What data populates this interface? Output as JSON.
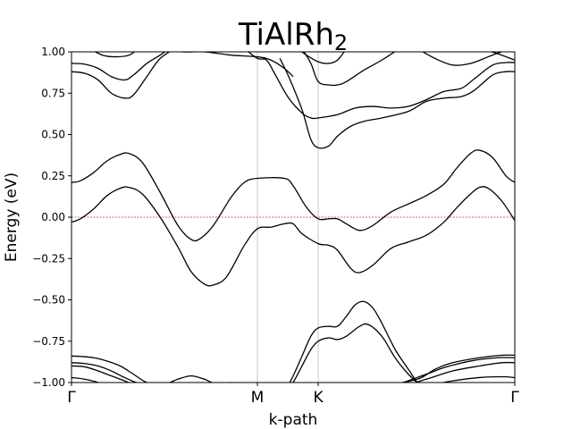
{
  "chart_data": {
    "type": "line",
    "title": "TiAlRh",
    "title_subscript": "2",
    "xlabel": "k-path",
    "ylabel": "Energy (eV)",
    "ylim": [
      -1.0,
      1.0
    ],
    "xlim": [
      0,
      1
    ],
    "y_ticks": [
      -1.0,
      -0.75,
      -0.5,
      -0.25,
      0.0,
      0.25,
      0.5,
      0.75,
      1.0
    ],
    "y_tick_labels": [
      "−1.00",
      "−0.75",
      "−0.50",
      "−0.25",
      "0.00",
      "0.25",
      "0.50",
      "0.75",
      "1.00"
    ],
    "k_points": [
      {
        "label": "Γ",
        "x": 0.0
      },
      {
        "label": "M",
        "x": 0.4194
      },
      {
        "label": "K",
        "x": 0.5565
      },
      {
        "label": "Γ",
        "x": 1.0
      }
    ],
    "fermi_level": 0.0,
    "fermi_color": "#d62728",
    "band_color": "#000000",
    "vline_color": "#c8c8c8",
    "grid": false,
    "series": [
      {
        "points": [
          [
            0,
            -0.97
          ],
          [
            0.03,
            -0.98
          ],
          [
            0.06,
            -1.0
          ],
          [
            0.09,
            -1.04
          ],
          [
            0.12,
            -1.06
          ],
          [
            0.18,
            -1.08
          ],
          [
            0.24,
            -1.06
          ],
          [
            0.3,
            -1.03
          ],
          [
            0.36,
            -1.05
          ],
          [
            0.4194,
            -1.1
          ],
          [
            0.48,
            -1.12
          ],
          [
            0.5565,
            -1.15
          ],
          [
            0.62,
            -1.12
          ],
          [
            0.68,
            -1.08
          ],
          [
            0.74,
            -1.05
          ],
          [
            0.8,
            -1.02
          ],
          [
            0.86,
            -0.99
          ],
          [
            0.92,
            -0.97
          ],
          [
            0.97,
            -0.965
          ],
          [
            1.0,
            -0.97
          ]
        ]
      },
      {
        "points": [
          [
            0,
            -0.9
          ],
          [
            0.03,
            -0.905
          ],
          [
            0.06,
            -0.93
          ],
          [
            0.09,
            -0.96
          ],
          [
            0.12,
            -0.99
          ],
          [
            0.15,
            -1.02
          ],
          [
            0.2,
            -1.02
          ],
          [
            0.24,
            -0.98
          ],
          [
            0.27,
            -0.96
          ],
          [
            0.3,
            -0.98
          ],
          [
            0.33,
            -1.01
          ],
          [
            0.4194,
            -1.05
          ],
          [
            0.5,
            -1.05
          ],
          [
            0.5565,
            -1.1
          ],
          [
            0.62,
            -1.08
          ],
          [
            0.7,
            -1.06
          ],
          [
            0.8,
            -0.98
          ],
          [
            0.86,
            -0.93
          ],
          [
            0.92,
            -0.9
          ],
          [
            0.97,
            -0.88
          ],
          [
            1.0,
            -0.88
          ]
        ]
      },
      {
        "points": [
          [
            0,
            -0.88
          ],
          [
            0.03,
            -0.885
          ],
          [
            0.06,
            -0.9
          ],
          [
            0.09,
            -0.93
          ],
          [
            0.12,
            -0.97
          ],
          [
            0.16,
            -1.01
          ],
          [
            0.24,
            -1.03
          ],
          [
            0.3,
            -1.02
          ],
          [
            0.36,
            -1.0
          ],
          [
            0.4194,
            -1.02
          ],
          [
            0.5,
            -1.03
          ],
          [
            0.5565,
            -1.05
          ],
          [
            0.62,
            -1.06
          ],
          [
            0.7,
            -1.04
          ],
          [
            0.8,
            -0.95
          ],
          [
            0.84,
            -0.91
          ],
          [
            0.9,
            -0.87
          ],
          [
            0.96,
            -0.85
          ],
          [
            1.0,
            -0.85
          ]
        ]
      },
      {
        "points": [
          [
            0,
            -0.84
          ],
          [
            0.02,
            -0.842
          ],
          [
            0.05,
            -0.85
          ],
          [
            0.08,
            -0.87
          ],
          [
            0.11,
            -0.9
          ],
          [
            0.14,
            -0.95
          ],
          [
            0.17,
            -1.0
          ],
          [
            0.22,
            -1.04
          ],
          [
            0.3,
            -1.05
          ],
          [
            0.4194,
            -1.05
          ],
          [
            0.48,
            -1.05
          ],
          [
            0.5565,
            -1.05
          ],
          [
            0.62,
            -1.04
          ],
          [
            0.7,
            -1.02
          ],
          [
            0.78,
            -0.98
          ],
          [
            0.82,
            -0.92
          ],
          [
            0.86,
            -0.88
          ],
          [
            0.92,
            -0.85
          ],
          [
            0.97,
            -0.835
          ],
          [
            1.0,
            -0.835
          ]
        ]
      },
      {
        "points": [
          [
            0.48,
            -1.08
          ],
          [
            0.5,
            -1.0
          ],
          [
            0.52,
            -0.9
          ],
          [
            0.54,
            -0.8
          ],
          [
            0.5565,
            -0.75
          ],
          [
            0.58,
            -0.73
          ],
          [
            0.6,
            -0.74
          ],
          [
            0.62,
            -0.72
          ],
          [
            0.65,
            -0.66
          ],
          [
            0.67,
            -0.65
          ],
          [
            0.7,
            -0.72
          ],
          [
            0.73,
            -0.85
          ],
          [
            0.76,
            -0.95
          ],
          [
            0.8,
            -1.05
          ]
        ]
      },
      {
        "points": [
          [
            0.48,
            -1.06
          ],
          [
            0.5,
            -0.96
          ],
          [
            0.52,
            -0.84
          ],
          [
            0.54,
            -0.72
          ],
          [
            0.5565,
            -0.67
          ],
          [
            0.58,
            -0.66
          ],
          [
            0.6,
            -0.66
          ],
          [
            0.62,
            -0.6
          ],
          [
            0.64,
            -0.53
          ],
          [
            0.66,
            -0.51
          ],
          [
            0.68,
            -0.55
          ],
          [
            0.7,
            -0.64
          ],
          [
            0.73,
            -0.8
          ],
          [
            0.76,
            -0.92
          ],
          [
            0.78,
            -1.0
          ],
          [
            0.8,
            -1.06
          ]
        ]
      },
      {
        "points": [
          [
            0,
            -0.03
          ],
          [
            0.02,
            -0.01
          ],
          [
            0.05,
            0.05
          ],
          [
            0.08,
            0.13
          ],
          [
            0.11,
            0.175
          ],
          [
            0.13,
            0.18
          ],
          [
            0.16,
            0.14
          ],
          [
            0.2,
            0.0
          ],
          [
            0.24,
            -0.18
          ],
          [
            0.27,
            -0.33
          ],
          [
            0.3,
            -0.405
          ],
          [
            0.32,
            -0.41
          ],
          [
            0.35,
            -0.36
          ],
          [
            0.39,
            -0.17
          ],
          [
            0.4194,
            -0.07
          ],
          [
            0.45,
            -0.06
          ],
          [
            0.48,
            -0.04
          ],
          [
            0.5,
            -0.04
          ],
          [
            0.52,
            -0.1
          ],
          [
            0.5565,
            -0.16
          ],
          [
            0.58,
            -0.17
          ],
          [
            0.6,
            -0.2
          ],
          [
            0.63,
            -0.31
          ],
          [
            0.65,
            -0.335
          ],
          [
            0.68,
            -0.29
          ],
          [
            0.72,
            -0.19
          ],
          [
            0.76,
            -0.15
          ],
          [
            0.8,
            -0.11
          ],
          [
            0.84,
            -0.03
          ],
          [
            0.87,
            0.06
          ],
          [
            0.9,
            0.14
          ],
          [
            0.92,
            0.18
          ],
          [
            0.94,
            0.175
          ],
          [
            0.97,
            0.1
          ],
          [
            1.0,
            -0.02
          ]
        ]
      },
      {
        "points": [
          [
            0,
            0.21
          ],
          [
            0.02,
            0.22
          ],
          [
            0.05,
            0.27
          ],
          [
            0.08,
            0.34
          ],
          [
            0.11,
            0.38
          ],
          [
            0.13,
            0.385
          ],
          [
            0.16,
            0.33
          ],
          [
            0.2,
            0.15
          ],
          [
            0.24,
            -0.05
          ],
          [
            0.27,
            -0.135
          ],
          [
            0.29,
            -0.13
          ],
          [
            0.32,
            -0.05
          ],
          [
            0.36,
            0.12
          ],
          [
            0.39,
            0.21
          ],
          [
            0.4194,
            0.235
          ],
          [
            0.48,
            0.235
          ],
          [
            0.5,
            0.19
          ],
          [
            0.53,
            0.06
          ],
          [
            0.5565,
            -0.01
          ],
          [
            0.58,
            -0.01
          ],
          [
            0.6,
            -0.01
          ],
          [
            0.62,
            -0.04
          ],
          [
            0.65,
            -0.08
          ],
          [
            0.68,
            -0.05
          ],
          [
            0.72,
            0.03
          ],
          [
            0.76,
            0.08
          ],
          [
            0.8,
            0.13
          ],
          [
            0.84,
            0.2
          ],
          [
            0.87,
            0.3
          ],
          [
            0.9,
            0.385
          ],
          [
            0.92,
            0.405
          ],
          [
            0.95,
            0.36
          ],
          [
            0.98,
            0.25
          ],
          [
            1.0,
            0.21
          ]
        ]
      },
      {
        "points": [
          [
            0.47,
            0.96
          ],
          [
            0.49,
            0.85
          ],
          [
            0.52,
            0.65
          ],
          [
            0.54,
            0.47
          ],
          [
            0.5565,
            0.42
          ],
          [
            0.58,
            0.43
          ],
          [
            0.6,
            0.49
          ],
          [
            0.63,
            0.55
          ],
          [
            0.66,
            0.58
          ],
          [
            0.7,
            0.6
          ],
          [
            0.76,
            0.64
          ],
          [
            0.8,
            0.7
          ],
          [
            0.84,
            0.72
          ],
          [
            0.88,
            0.73
          ],
          [
            0.91,
            0.77
          ],
          [
            0.95,
            0.86
          ],
          [
            0.98,
            0.88
          ],
          [
            1.0,
            0.88
          ]
        ]
      },
      {
        "points": [
          [
            0.52,
            1.02
          ],
          [
            0.54,
            0.93
          ],
          [
            0.5565,
            0.82
          ],
          [
            0.58,
            0.8
          ],
          [
            0.6,
            0.8
          ],
          [
            0.62,
            0.82
          ],
          [
            0.66,
            0.89
          ],
          [
            0.7,
            0.95
          ],
          [
            0.74,
            1.02
          ]
        ]
      },
      {
        "points": [
          [
            0.51,
            1.02
          ],
          [
            0.53,
            0.98
          ],
          [
            0.5565,
            0.94
          ],
          [
            0.58,
            0.93
          ],
          [
            0.6,
            0.95
          ],
          [
            0.62,
            1.02
          ]
        ]
      },
      {
        "points": [
          [
            0.39,
            1.02
          ],
          [
            0.4194,
            0.96
          ],
          [
            0.44,
            0.95
          ],
          [
            0.46,
            0.86
          ],
          [
            0.49,
            0.72
          ],
          [
            0.52,
            0.63
          ],
          [
            0.54,
            0.6
          ],
          [
            0.5565,
            0.6
          ],
          [
            0.6,
            0.62
          ],
          [
            0.64,
            0.66
          ],
          [
            0.68,
            0.67
          ],
          [
            0.72,
            0.66
          ],
          [
            0.76,
            0.67
          ],
          [
            0.8,
            0.71
          ],
          [
            0.84,
            0.76
          ],
          [
            0.88,
            0.78
          ],
          [
            0.91,
            0.84
          ],
          [
            0.95,
            0.92
          ],
          [
            0.98,
            0.935
          ],
          [
            1.0,
            0.935
          ]
        ]
      },
      {
        "points": [
          [
            0,
            0.93
          ],
          [
            0.03,
            0.925
          ],
          [
            0.06,
            0.9
          ],
          [
            0.09,
            0.85
          ],
          [
            0.12,
            0.83
          ],
          [
            0.14,
            0.86
          ],
          [
            0.17,
            0.93
          ],
          [
            0.2,
            0.98
          ],
          [
            0.22,
            1.02
          ]
        ]
      },
      {
        "points": [
          [
            0,
            0.88
          ],
          [
            0.03,
            0.87
          ],
          [
            0.06,
            0.83
          ],
          [
            0.09,
            0.75
          ],
          [
            0.12,
            0.72
          ],
          [
            0.14,
            0.74
          ],
          [
            0.17,
            0.85
          ],
          [
            0.2,
            0.96
          ],
          [
            0.24,
            1.03
          ]
        ]
      },
      {
        "points": [
          [
            0.04,
            1.02
          ],
          [
            0.07,
            0.98
          ],
          [
            0.1,
            0.97
          ],
          [
            0.13,
            0.98
          ],
          [
            0.15,
            1.02
          ]
        ]
      },
      {
        "points": [
          [
            0.2,
            1.02
          ],
          [
            0.25,
            1.0
          ],
          [
            0.3,
            1.0
          ],
          [
            0.36,
            0.98
          ],
          [
            0.4194,
            0.97
          ],
          [
            0.45,
            0.95
          ],
          [
            0.48,
            0.9
          ],
          [
            0.5,
            0.85
          ]
        ]
      },
      {
        "points": [
          [
            0.78,
            1.02
          ],
          [
            0.82,
            0.96
          ],
          [
            0.86,
            0.92
          ],
          [
            0.9,
            0.93
          ],
          [
            0.94,
            0.97
          ],
          [
            0.97,
            1.0
          ],
          [
            1.0,
            1.02
          ]
        ]
      },
      {
        "points": [
          [
            0.92,
            1.02
          ],
          [
            0.96,
            0.99
          ],
          [
            1.0,
            0.95
          ]
        ]
      }
    ]
  }
}
